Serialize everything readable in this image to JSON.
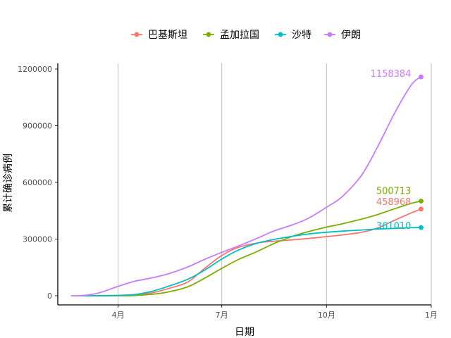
{
  "chart_data": {
    "type": "line",
    "xlabel": "日期",
    "ylabel": "累计确诊病例",
    "x_ticks": [
      {
        "label": "4月",
        "date": "2020-04-01"
      },
      {
        "label": "7月",
        "date": "2020-07-01"
      },
      {
        "label": "10月",
        "date": "2020-10-01"
      },
      {
        "label": "1月",
        "date": "2021-01-01"
      }
    ],
    "xlim": [
      "2020-02-08",
      "2021-01-01"
    ],
    "y_ticks": [
      0,
      300000,
      600000,
      900000,
      1200000
    ],
    "y_tick_labels": [
      "0",
      "300000",
      "600000",
      "900000",
      "1200000"
    ],
    "ylim": [
      0,
      1200000
    ],
    "grid": "vertical-major",
    "legend_position": "top",
    "series": [
      {
        "name": "巴基斯坦",
        "color": "#F8766D",
        "end_label": "458968",
        "points": [
          [
            "2020-02-26",
            0
          ],
          [
            "2020-03-15",
            0
          ],
          [
            "2020-04-01",
            2000
          ],
          [
            "2020-04-15",
            6000
          ],
          [
            "2020-05-01",
            16000
          ],
          [
            "2020-05-15",
            38000
          ],
          [
            "2020-06-01",
            72000
          ],
          [
            "2020-06-15",
            140000
          ],
          [
            "2020-07-01",
            213000
          ],
          [
            "2020-07-15",
            255000
          ],
          [
            "2020-08-01",
            279000
          ],
          [
            "2020-08-15",
            288000
          ],
          [
            "2020-09-01",
            296000
          ],
          [
            "2020-09-15",
            303000
          ],
          [
            "2020-10-01",
            313000
          ],
          [
            "2020-10-15",
            322000
          ],
          [
            "2020-11-01",
            336000
          ],
          [
            "2020-11-15",
            359000
          ],
          [
            "2020-12-01",
            403000
          ],
          [
            "2020-12-15",
            440000
          ],
          [
            "2020-12-23",
            458968
          ]
        ]
      },
      {
        "name": "孟加拉国",
        "color": "#7CAE00",
        "end_label": "500713",
        "points": [
          [
            "2020-02-26",
            0
          ],
          [
            "2020-03-15",
            0
          ],
          [
            "2020-04-01",
            50
          ],
          [
            "2020-04-15",
            1200
          ],
          [
            "2020-05-01",
            8000
          ],
          [
            "2020-05-15",
            20000
          ],
          [
            "2020-06-01",
            47000
          ],
          [
            "2020-06-15",
            90000
          ],
          [
            "2020-07-01",
            145000
          ],
          [
            "2020-07-15",
            190000
          ],
          [
            "2020-08-01",
            234000
          ],
          [
            "2020-08-15",
            274000
          ],
          [
            "2020-09-01",
            314000
          ],
          [
            "2020-09-15",
            339000
          ],
          [
            "2020-10-01",
            363000
          ],
          [
            "2020-10-15",
            381000
          ],
          [
            "2020-11-01",
            406000
          ],
          [
            "2020-11-15",
            430000
          ],
          [
            "2020-12-01",
            463000
          ],
          [
            "2020-12-15",
            490000
          ],
          [
            "2020-12-23",
            500713
          ]
        ]
      },
      {
        "name": "沙特",
        "color": "#00BFC4",
        "end_label": "361010",
        "points": [
          [
            "2020-02-26",
            0
          ],
          [
            "2020-03-15",
            100
          ],
          [
            "2020-04-01",
            1600
          ],
          [
            "2020-04-15",
            6000
          ],
          [
            "2020-05-01",
            24000
          ],
          [
            "2020-05-15",
            50000
          ],
          [
            "2020-06-01",
            87000
          ],
          [
            "2020-06-15",
            132000
          ],
          [
            "2020-07-01",
            194000
          ],
          [
            "2020-07-15",
            240000
          ],
          [
            "2020-08-01",
            278000
          ],
          [
            "2020-08-15",
            297000
          ],
          [
            "2020-09-01",
            315000
          ],
          [
            "2020-09-15",
            327000
          ],
          [
            "2020-10-01",
            336000
          ],
          [
            "2020-10-15",
            342000
          ],
          [
            "2020-11-01",
            348000
          ],
          [
            "2020-11-15",
            353000
          ],
          [
            "2020-12-01",
            357000
          ],
          [
            "2020-12-15",
            360000
          ],
          [
            "2020-12-23",
            361010
          ]
        ]
      },
      {
        "name": "伊朗",
        "color": "#C77CFF",
        "end_label": "1158384",
        "points": [
          [
            "2020-02-20",
            0
          ],
          [
            "2020-03-01",
            1000
          ],
          [
            "2020-03-15",
            15000
          ],
          [
            "2020-04-01",
            50000
          ],
          [
            "2020-04-15",
            76000
          ],
          [
            "2020-05-01",
            95000
          ],
          [
            "2020-05-15",
            116000
          ],
          [
            "2020-06-01",
            152000
          ],
          [
            "2020-06-15",
            190000
          ],
          [
            "2020-07-01",
            230000
          ],
          [
            "2020-07-15",
            262000
          ],
          [
            "2020-08-01",
            304000
          ],
          [
            "2020-08-15",
            341000
          ],
          [
            "2020-09-01",
            375000
          ],
          [
            "2020-09-15",
            410000
          ],
          [
            "2020-10-01",
            468000
          ],
          [
            "2020-10-15",
            526000
          ],
          [
            "2020-11-01",
            640000
          ],
          [
            "2020-11-15",
            790000
          ],
          [
            "2020-12-01",
            980000
          ],
          [
            "2020-12-15",
            1120000
          ],
          [
            "2020-12-23",
            1158384
          ]
        ]
      }
    ]
  }
}
